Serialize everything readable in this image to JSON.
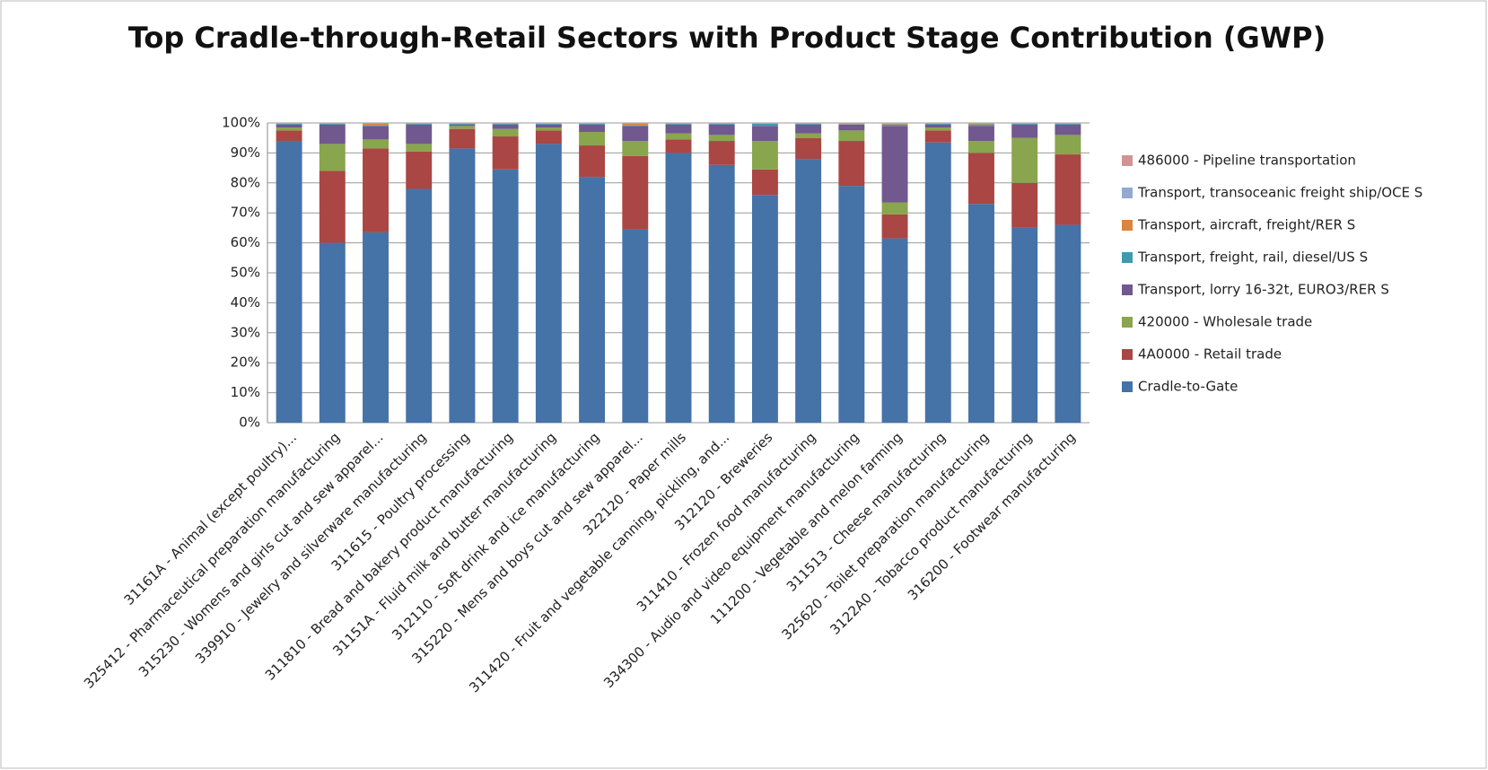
{
  "chart_data": {
    "type": "stacked_bar_percent",
    "title": "Top Cradle-through-Retail Sectors with Product Stage Contribution (GWP)",
    "categories": [
      "31161A - Animal (except poultry)...",
      "325412 - Pharmaceutical preparation manufacturing",
      "315230 - Womens and girls cut and sew apparel...",
      "339910 - Jewelry and silverware manufacturing",
      "311615 - Poultry processing",
      "311810 - Bread and bakery product manufacturing",
      "31151A - Fluid milk and butter manufacturing",
      "312110 - Soft drink and ice manufacturing",
      "315220 - Mens and boys cut and sew apparel...",
      "322120 - Paper mills",
      "311420 - Fruit and vegetable canning, pickling, and...",
      "312120 - Breweries",
      "311410 - Frozen food manufacturing",
      "334300 - Audio and video equipment manufacturing",
      "111200 - Vegetable and melon farming",
      "311513 - Cheese manufacturing",
      "325620 - Toilet preparation manufacturing",
      "3122A0 - Tobacco product manufacturing",
      "316200 - Footwear manufacturing"
    ],
    "series": [
      {
        "name": "Cradle-to-Gate",
        "color": "#4572a7",
        "values": [
          94,
          60,
          63.5,
          78,
          91.5,
          84.5,
          93,
          82,
          64.5,
          90,
          86,
          76,
          88,
          79,
          61.5,
          93.5,
          73,
          65,
          66
        ]
      },
      {
        "name": "4A0000 - Retail trade",
        "color": "#aa4643",
        "values": [
          3.5,
          24,
          28,
          12.5,
          6.5,
          11,
          4.5,
          10.5,
          24.5,
          4.5,
          8,
          8.5,
          7,
          15,
          8,
          4,
          17,
          15,
          23.5
        ]
      },
      {
        "name": "420000 - Wholesale trade",
        "color": "#89a54e",
        "values": [
          1,
          9,
          3,
          2.5,
          1,
          2.5,
          1,
          4.5,
          5,
          2,
          2,
          9.5,
          1.5,
          3.5,
          4,
          1,
          4,
          15,
          6.5
        ]
      },
      {
        "name": "Transport, lorry 16-32t, EURO3/RER S",
        "color": "#71588f",
        "values": [
          1,
          6.5,
          4.5,
          6.5,
          0.5,
          1.5,
          1,
          2.5,
          5,
          3,
          3.5,
          5,
          3,
          2,
          25.5,
          1,
          5,
          4.5,
          3.5
        ]
      },
      {
        "name": "Transport, freight, rail, diesel/US S",
        "color": "#4198af",
        "values": [
          0.2,
          0.2,
          0.2,
          0.2,
          0.2,
          0.2,
          0.2,
          0.2,
          0.2,
          0.2,
          0.2,
          0.7,
          0.2,
          0.1,
          0.5,
          0.2,
          0.5,
          0.2,
          0.2
        ]
      },
      {
        "name": "Transport, aircraft, freight/RER S",
        "color": "#db843d",
        "values": [
          0.1,
          0.1,
          0.5,
          0.1,
          0.1,
          0.1,
          0.1,
          0.1,
          0.5,
          0.1,
          0.1,
          0.1,
          0.1,
          0.2,
          0.2,
          0.1,
          0.2,
          0.1,
          0.1
        ]
      },
      {
        "name": "Transport, transoceanic freight ship/OCE S",
        "color": "#93a9cf",
        "values": [
          0.1,
          0.1,
          0.2,
          0.1,
          0.1,
          0.1,
          0.1,
          0.1,
          0.2,
          0.1,
          0.1,
          0.1,
          0.1,
          0.1,
          0.1,
          0.1,
          0.2,
          0.1,
          0.1
        ]
      },
      {
        "name": "486000 - Pipeline transportation",
        "color": "#d19392",
        "values": [
          0.1,
          0.1,
          0.1,
          0.1,
          0.1,
          0.1,
          0.1,
          0.1,
          0.1,
          0.1,
          0.1,
          0.1,
          0.1,
          0.1,
          0.2,
          0.1,
          0.1,
          0.1,
          0.1
        ]
      }
    ],
    "ylim": [
      0,
      100
    ],
    "yticks": [
      {
        "value": 0,
        "label": "0%"
      },
      {
        "value": 10,
        "label": "10%"
      },
      {
        "value": 20,
        "label": "20%"
      },
      {
        "value": 30,
        "label": "30%"
      },
      {
        "value": 40,
        "label": "40%"
      },
      {
        "value": 50,
        "label": "50%"
      },
      {
        "value": 60,
        "label": "60%"
      },
      {
        "value": 70,
        "label": "70%"
      },
      {
        "value": 80,
        "label": "80%"
      },
      {
        "value": 90,
        "label": "90%"
      },
      {
        "value": 100,
        "label": "100%"
      }
    ],
    "grid": true,
    "legend": "right"
  }
}
